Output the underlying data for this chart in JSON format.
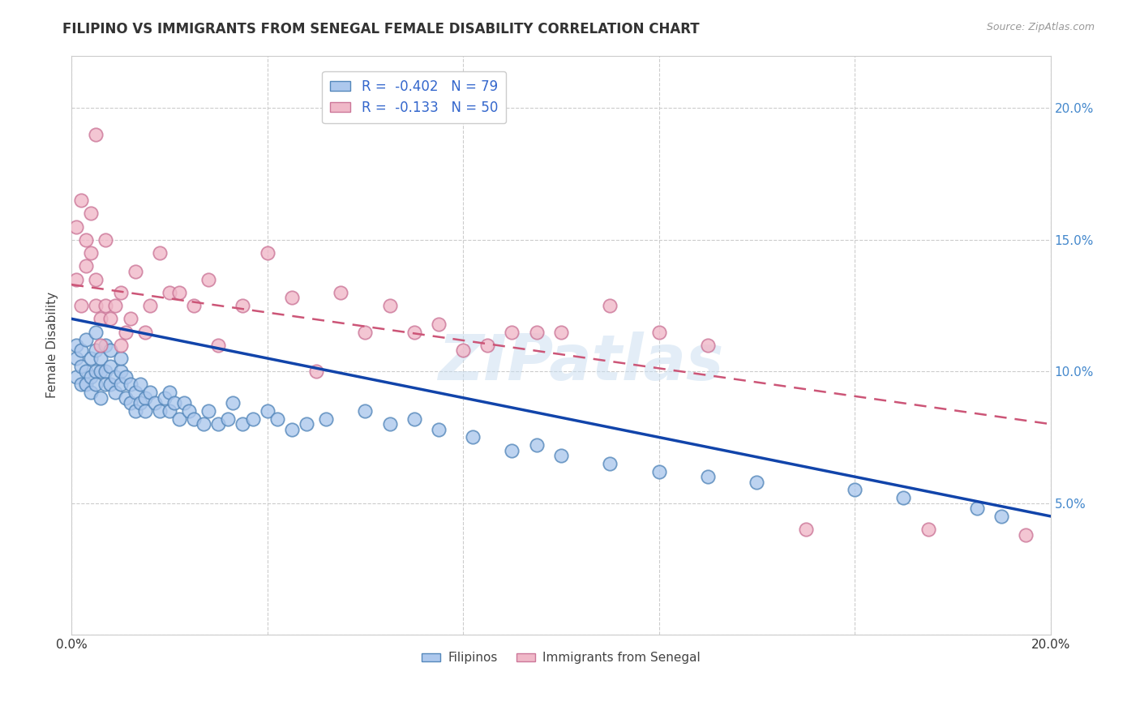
{
  "title": "FILIPINO VS IMMIGRANTS FROM SENEGAL FEMALE DISABILITY CORRELATION CHART",
  "source": "Source: ZipAtlas.com",
  "ylabel": "Female Disability",
  "xlabel": "",
  "xlim": [
    0.0,
    0.2
  ],
  "ylim": [
    0.0,
    0.22
  ],
  "ytick_pos": [
    0.0,
    0.05,
    0.1,
    0.15,
    0.2
  ],
  "ytick_labels_right": [
    "",
    "5.0%",
    "10.0%",
    "15.0%",
    "20.0%"
  ],
  "xtick_pos": [
    0.0,
    0.04,
    0.08,
    0.12,
    0.16,
    0.2
  ],
  "xtick_labels": [
    "0.0%",
    "",
    "",
    "",
    "",
    "20.0%"
  ],
  "legend_labels_bottom": [
    "Filipinos",
    "Immigrants from Senegal"
  ],
  "watermark": "ZIPatlas",
  "filipino_color": "#adc8ed",
  "filipino_edge_color": "#5588bb",
  "senegal_color": "#f0b8c8",
  "senegal_edge_color": "#cc7799",
  "trendline_filipino_color": "#1144aa",
  "trendline_senegal_color": "#cc5577",
  "background_color": "#ffffff",
  "grid_color": "#cccccc",
  "title_fontsize": 12,
  "right_axis_color": "#4488cc",
  "filipino_x": [
    0.001,
    0.001,
    0.001,
    0.002,
    0.002,
    0.002,
    0.003,
    0.003,
    0.003,
    0.004,
    0.004,
    0.004,
    0.005,
    0.005,
    0.005,
    0.005,
    0.006,
    0.006,
    0.006,
    0.007,
    0.007,
    0.007,
    0.008,
    0.008,
    0.008,
    0.009,
    0.009,
    0.01,
    0.01,
    0.01,
    0.011,
    0.011,
    0.012,
    0.012,
    0.013,
    0.013,
    0.014,
    0.014,
    0.015,
    0.015,
    0.016,
    0.017,
    0.018,
    0.019,
    0.02,
    0.02,
    0.021,
    0.022,
    0.023,
    0.024,
    0.025,
    0.027,
    0.028,
    0.03,
    0.032,
    0.033,
    0.035,
    0.037,
    0.04,
    0.042,
    0.045,
    0.048,
    0.052,
    0.06,
    0.065,
    0.07,
    0.075,
    0.082,
    0.09,
    0.095,
    0.1,
    0.11,
    0.12,
    0.13,
    0.14,
    0.16,
    0.17,
    0.185,
    0.19
  ],
  "filipino_y": [
    0.105,
    0.098,
    0.11,
    0.102,
    0.095,
    0.108,
    0.1,
    0.095,
    0.112,
    0.098,
    0.105,
    0.092,
    0.108,
    0.1,
    0.095,
    0.115,
    0.1,
    0.09,
    0.105,
    0.11,
    0.1,
    0.095,
    0.102,
    0.095,
    0.108,
    0.098,
    0.092,
    0.1,
    0.095,
    0.105,
    0.09,
    0.098,
    0.095,
    0.088,
    0.092,
    0.085,
    0.088,
    0.095,
    0.09,
    0.085,
    0.092,
    0.088,
    0.085,
    0.09,
    0.085,
    0.092,
    0.088,
    0.082,
    0.088,
    0.085,
    0.082,
    0.08,
    0.085,
    0.08,
    0.082,
    0.088,
    0.08,
    0.082,
    0.085,
    0.082,
    0.078,
    0.08,
    0.082,
    0.085,
    0.08,
    0.082,
    0.078,
    0.075,
    0.07,
    0.072,
    0.068,
    0.065,
    0.062,
    0.06,
    0.058,
    0.055,
    0.052,
    0.048,
    0.045
  ],
  "senegal_x": [
    0.001,
    0.001,
    0.002,
    0.002,
    0.003,
    0.003,
    0.004,
    0.004,
    0.005,
    0.005,
    0.005,
    0.006,
    0.006,
    0.007,
    0.007,
    0.008,
    0.009,
    0.01,
    0.01,
    0.011,
    0.012,
    0.013,
    0.015,
    0.016,
    0.018,
    0.02,
    0.022,
    0.025,
    0.028,
    0.03,
    0.035,
    0.04,
    0.045,
    0.05,
    0.055,
    0.06,
    0.065,
    0.07,
    0.075,
    0.08,
    0.085,
    0.09,
    0.095,
    0.1,
    0.11,
    0.12,
    0.13,
    0.15,
    0.175,
    0.195
  ],
  "senegal_y": [
    0.135,
    0.155,
    0.125,
    0.165,
    0.14,
    0.15,
    0.145,
    0.16,
    0.125,
    0.135,
    0.19,
    0.12,
    0.11,
    0.125,
    0.15,
    0.12,
    0.125,
    0.13,
    0.11,
    0.115,
    0.12,
    0.138,
    0.115,
    0.125,
    0.145,
    0.13,
    0.13,
    0.125,
    0.135,
    0.11,
    0.125,
    0.145,
    0.128,
    0.1,
    0.13,
    0.115,
    0.125,
    0.115,
    0.118,
    0.108,
    0.11,
    0.115,
    0.115,
    0.115,
    0.125,
    0.115,
    0.11,
    0.04,
    0.04,
    0.038
  ],
  "trendline_fil_x0": 0.0,
  "trendline_fil_y0": 0.12,
  "trendline_fil_x1": 0.2,
  "trendline_fil_y1": 0.045,
  "trendline_sen_x0": 0.0,
  "trendline_sen_y0": 0.133,
  "trendline_sen_x1": 0.2,
  "trendline_sen_y1": 0.08
}
